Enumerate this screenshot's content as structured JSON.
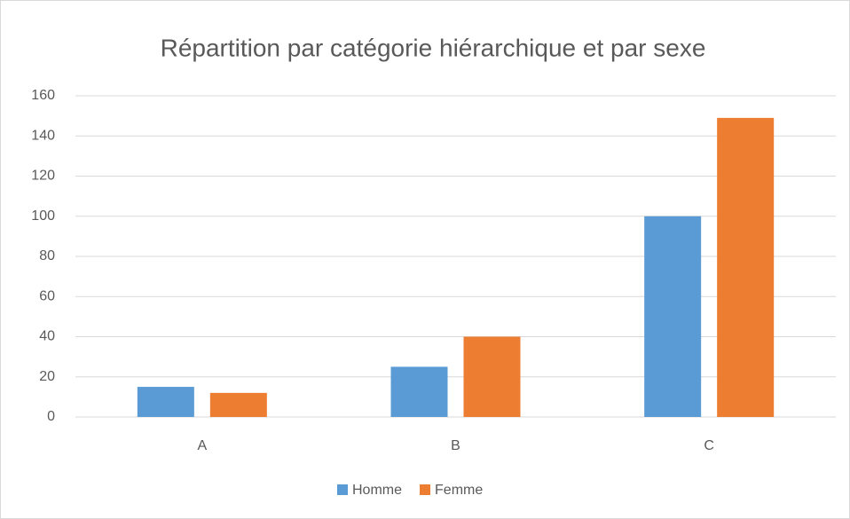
{
  "chart_data": {
    "type": "bar",
    "title": "Répartition par catégorie hiérarchique et par sexe",
    "categories": [
      "A",
      "B",
      "C"
    ],
    "series": [
      {
        "name": "Homme",
        "color": "#5b9bd5",
        "values": [
          15,
          25,
          100
        ]
      },
      {
        "name": "Femme",
        "color": "#ed7d31",
        "values": [
          12,
          40,
          149
        ]
      }
    ],
    "ylim": [
      0,
      160
    ],
    "yticks": [
      0,
      20,
      40,
      60,
      80,
      100,
      120,
      140,
      160
    ],
    "grid": true,
    "legend": "bottom"
  }
}
